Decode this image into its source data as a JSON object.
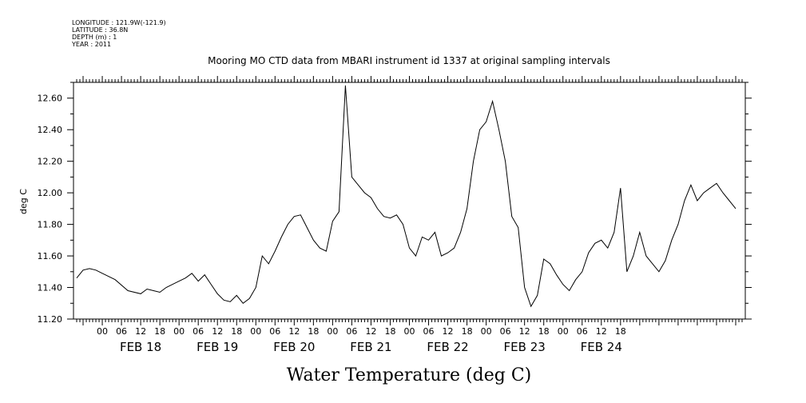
{
  "header": {
    "meta_lines": [
      "LONGITUDE : 121.9W(-121.9)",
      "LATITUDE : 36.8N",
      "DEPTH (m) : 1",
      "YEAR : 2011"
    ]
  },
  "chart_data": {
    "type": "line",
    "title": "Mooring MO CTD data from MBARI instrument id 1337 at original sampling intervals",
    "xlabel": "Water Temperature (deg C)",
    "ylabel": "deg C",
    "xlim": [
      -9,
      201
    ],
    "ylim": [
      11.2,
      12.7
    ],
    "y_ticks": [
      "11.20",
      "11.40",
      "11.60",
      "11.80",
      "12.00",
      "12.20",
      "12.40",
      "12.60"
    ],
    "x_hour_tick_labels": [
      "00",
      "06",
      "12",
      "18",
      "00",
      "06",
      "12",
      "18",
      "00",
      "06",
      "12",
      "18",
      "00",
      "06",
      "12",
      "18",
      "00",
      "06",
      "12",
      "18",
      "00",
      "06",
      "12",
      "18",
      "00",
      "06",
      "12",
      "18"
    ],
    "day_labels": [
      "FEB 18",
      "FEB 19",
      "FEB 20",
      "FEB 21",
      "FEB 22",
      "FEB 23",
      "FEB 24"
    ],
    "grid": false,
    "series": [
      {
        "color": "#000000",
        "x_unit": "hours since FEB 18 00",
        "x": [
          -8,
          -6,
          -4,
          -2,
          0,
          4,
          8,
          12,
          14,
          16,
          18,
          20,
          22,
          24,
          26,
          28,
          30,
          32,
          34,
          36,
          38,
          40,
          42,
          44,
          46,
          48,
          50,
          52,
          54,
          56,
          58,
          60,
          62,
          64,
          66,
          68,
          70,
          72,
          74,
          76,
          78,
          80,
          82,
          84,
          86,
          88,
          90,
          92,
          94,
          96,
          98,
          100,
          102,
          104,
          106,
          108,
          110,
          112,
          114,
          116,
          118,
          120,
          122,
          124,
          126,
          128,
          130,
          132,
          134,
          136,
          138,
          140,
          142,
          144,
          146,
          148,
          150,
          152,
          154,
          156,
          158,
          160,
          162,
          164,
          166,
          168,
          170,
          172,
          174,
          176,
          178,
          180,
          182,
          184,
          186,
          188,
          190,
          192,
          194,
          196,
          198
        ],
        "y": [
          11.46,
          11.51,
          11.52,
          11.51,
          11.49,
          11.45,
          11.38,
          11.36,
          11.39,
          11.38,
          11.37,
          11.4,
          11.42,
          11.44,
          11.46,
          11.49,
          11.44,
          11.48,
          11.42,
          11.36,
          11.32,
          11.31,
          11.35,
          11.3,
          11.33,
          11.4,
          11.6,
          11.55,
          11.63,
          11.72,
          11.8,
          11.85,
          11.86,
          11.78,
          11.7,
          11.65,
          11.63,
          11.82,
          11.88,
          12.68,
          12.1,
          12.05,
          12.0,
          11.97,
          11.9,
          11.85,
          11.84,
          11.86,
          11.8,
          11.65,
          11.6,
          11.72,
          11.7,
          11.75,
          11.6,
          11.62,
          11.65,
          11.75,
          11.9,
          12.2,
          12.4,
          12.45,
          12.58,
          12.4,
          12.2,
          11.85,
          11.78,
          11.4,
          11.28,
          11.35,
          11.58,
          11.55,
          11.48,
          11.42,
          11.38,
          11.45,
          11.5,
          11.62,
          11.68,
          11.7,
          11.65,
          11.75,
          12.03,
          11.5,
          11.6,
          11.75,
          11.6,
          11.55,
          11.5,
          11.57,
          11.7,
          11.8,
          11.95,
          12.05,
          11.95,
          12.0,
          12.03,
          12.06,
          12.0,
          11.95,
          11.9
        ]
      }
    ]
  }
}
